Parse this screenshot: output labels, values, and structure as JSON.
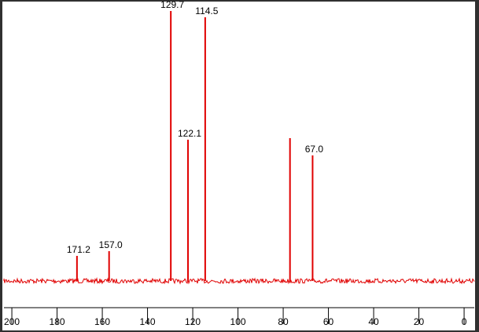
{
  "chart_data": {
    "type": "spectrum",
    "color": "#e00000",
    "x": [
      171.2,
      157.0,
      129.7,
      122.1,
      114.5,
      77.0,
      67.0
    ],
    "values": [
      32,
      38,
      344,
      180,
      336,
      182,
      160
    ],
    "peak_labels": [
      "171.2",
      "157.0",
      "129.7",
      "122.1",
      "114.5",
      null,
      "67.0"
    ],
    "xlim": [
      203.5,
      -4.5
    ],
    "xticks": [
      200,
      180,
      160,
      140,
      120,
      100,
      80,
      60,
      40,
      20,
      0
    ],
    "ylim": [
      0,
      350
    ]
  }
}
